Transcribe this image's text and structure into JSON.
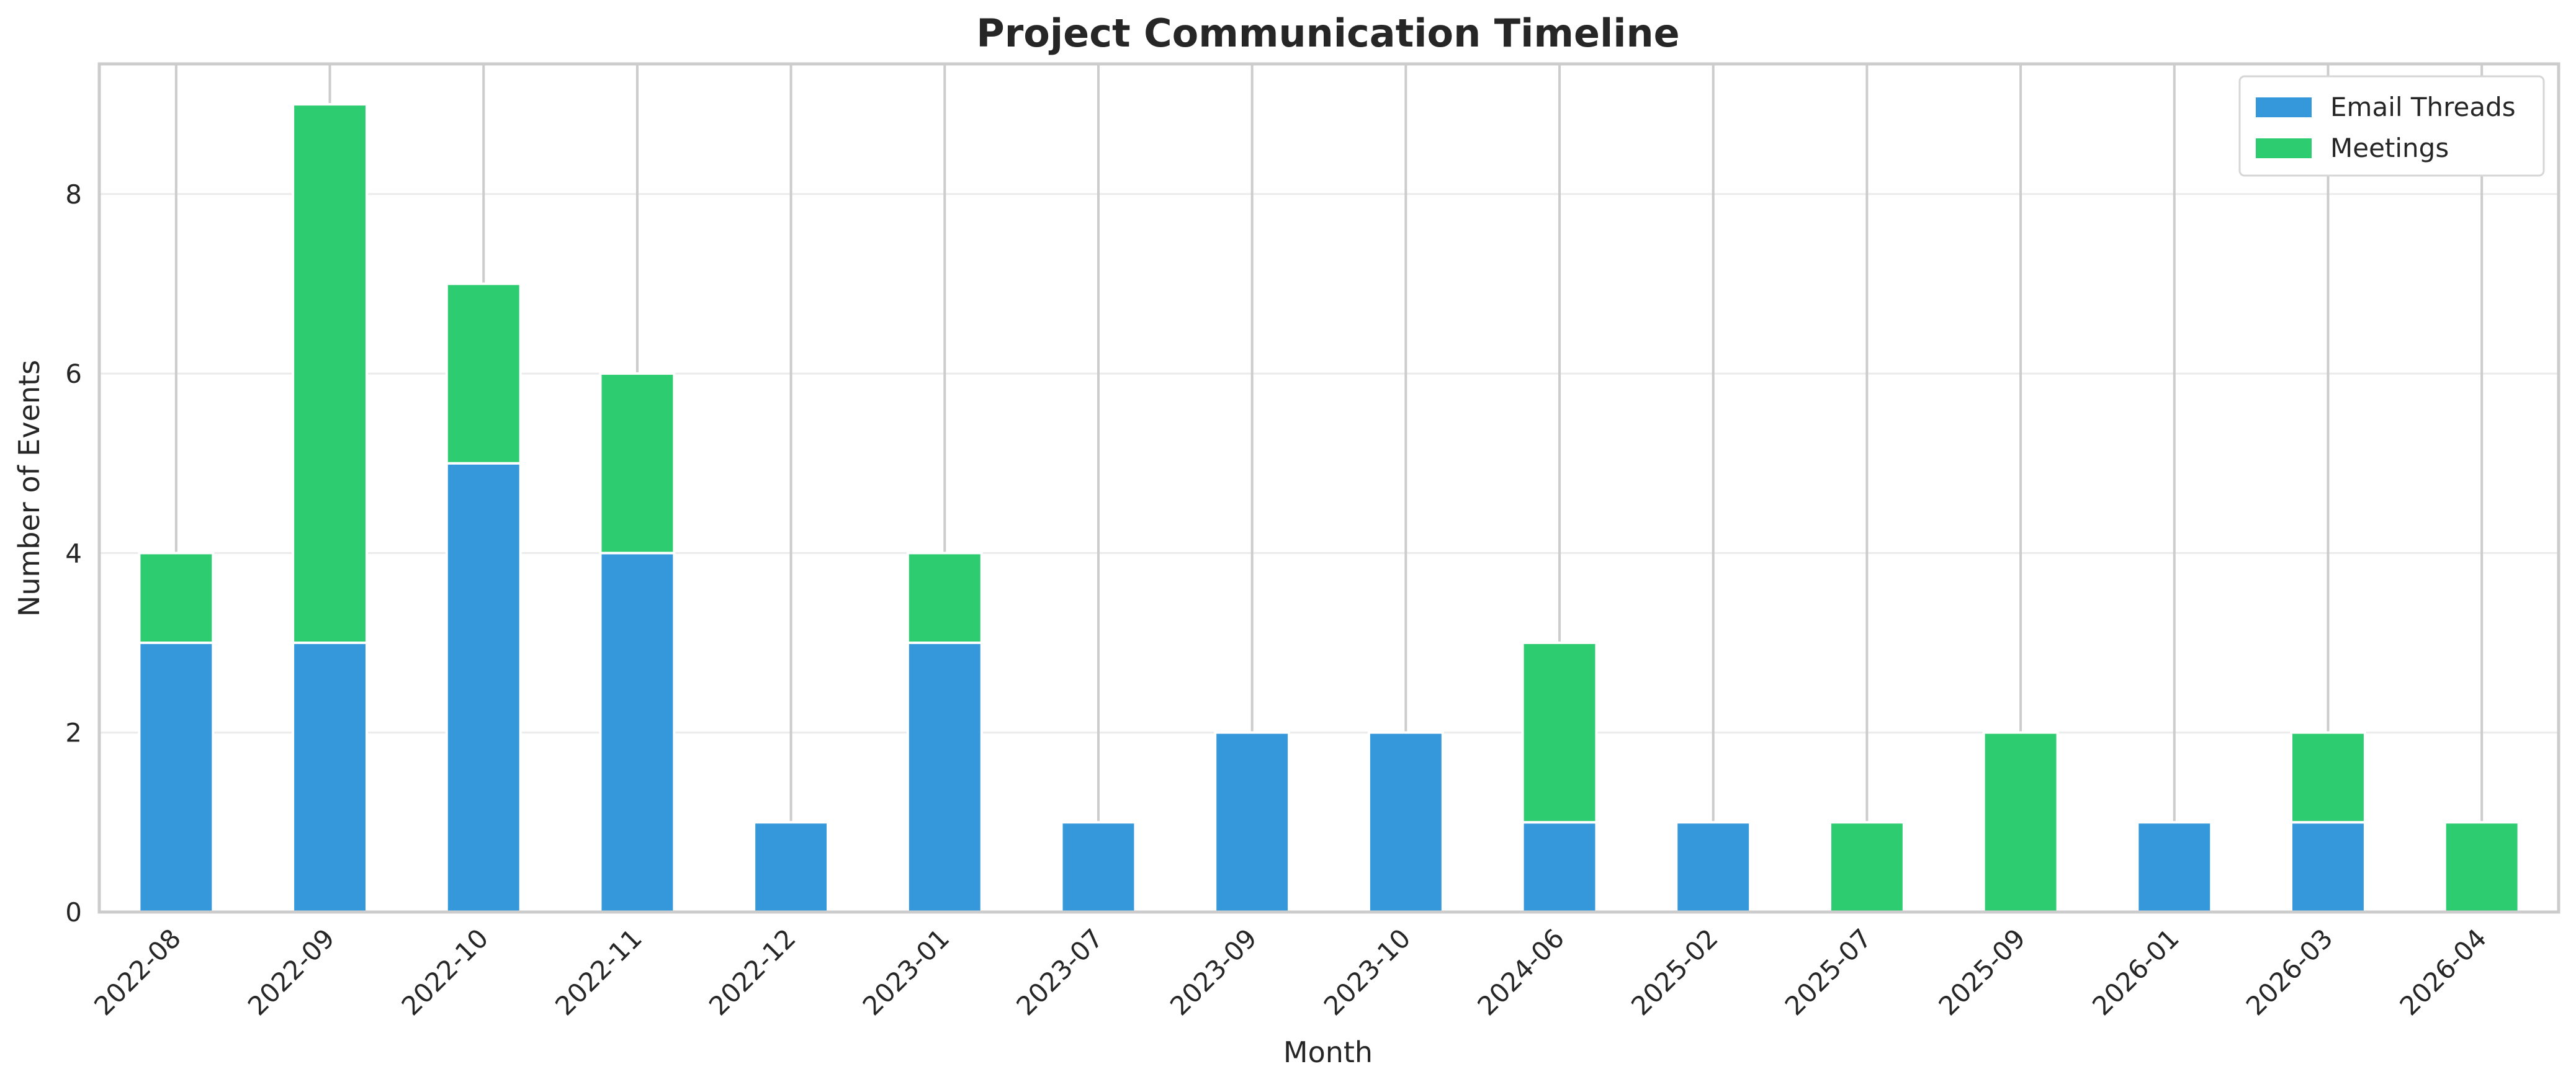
{
  "chart_data": {
    "type": "bar",
    "stacked": true,
    "title": "Project Communication Timeline",
    "xlabel": "Month",
    "ylabel": "Number of Events",
    "categories": [
      "2022-08",
      "2022-09",
      "2022-10",
      "2022-11",
      "2022-12",
      "2023-01",
      "2023-07",
      "2023-09",
      "2023-10",
      "2024-06",
      "2025-02",
      "2025-07",
      "2025-09",
      "2026-01",
      "2026-03",
      "2026-04"
    ],
    "series": [
      {
        "name": "Email Threads",
        "color": "#3498db",
        "values": [
          3,
          3,
          5,
          4,
          1,
          3,
          1,
          2,
          2,
          1,
          1,
          0,
          0,
          1,
          1,
          0
        ]
      },
      {
        "name": "Meetings",
        "color": "#2ecc71",
        "values": [
          1,
          6,
          2,
          2,
          0,
          1,
          0,
          0,
          0,
          2,
          0,
          1,
          2,
          0,
          1,
          1
        ]
      }
    ],
    "ylim": [
      0,
      9.45
    ],
    "yticks": [
      0,
      2,
      4,
      6,
      8
    ],
    "grid": true,
    "legend_position": "top-right"
  }
}
